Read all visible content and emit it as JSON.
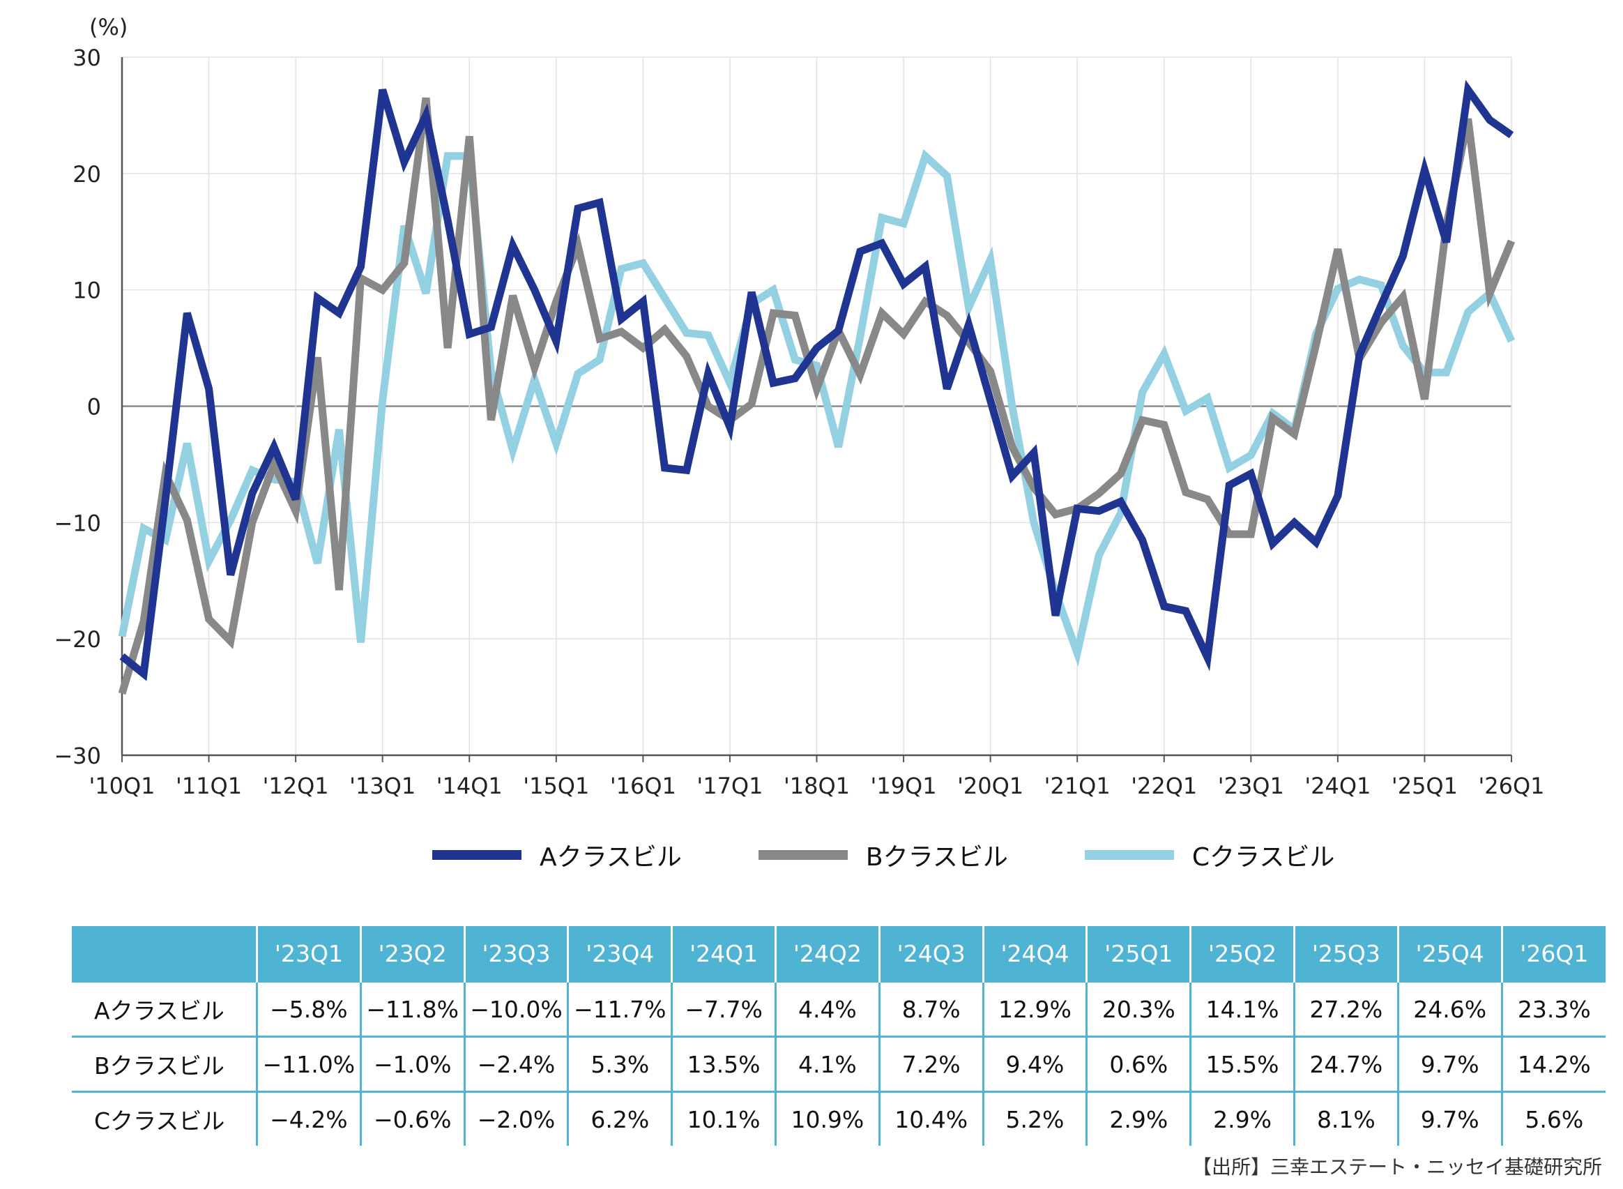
{
  "chart_data": {
    "type": "line",
    "y_unit": "(%)",
    "ylim": [
      -30,
      30
    ],
    "yticks": [
      30,
      20,
      10,
      0,
      -10,
      -20,
      -30
    ],
    "ytick_labels": [
      "30",
      "20",
      "10",
      "0",
      "−10",
      "−20",
      "−30"
    ],
    "xtick_labels": [
      "'10Q1",
      "'11Q1",
      "'12Q1",
      "'13Q1",
      "'14Q1",
      "'15Q1",
      "'16Q1",
      "'17Q1",
      "'18Q1",
      "'19Q1",
      "'20Q1",
      "'21Q1",
      "'22Q1",
      "'23Q1",
      "'24Q1",
      "'25Q1",
      "'26Q1"
    ],
    "x": [
      "'10Q1",
      "'10Q2",
      "'10Q3",
      "'10Q4",
      "'11Q1",
      "'11Q2",
      "'11Q3",
      "'11Q4",
      "'12Q1",
      "'12Q2",
      "'12Q3",
      "'12Q4",
      "'13Q1",
      "'13Q2",
      "'13Q3",
      "'13Q4",
      "'14Q1",
      "'14Q2",
      "'14Q3",
      "'14Q4",
      "'15Q1",
      "'15Q2",
      "'15Q3",
      "'15Q4",
      "'16Q1",
      "'16Q2",
      "'16Q3",
      "'16Q4",
      "'17Q1",
      "'17Q2",
      "'17Q3",
      "'17Q4",
      "'18Q1",
      "'18Q2",
      "'18Q3",
      "'18Q4",
      "'19Q1",
      "'19Q2",
      "'19Q3",
      "'19Q4",
      "'20Q1",
      "'20Q2",
      "'20Q3",
      "'20Q4",
      "'21Q1",
      "'21Q2",
      "'21Q3",
      "'21Q4",
      "'22Q1",
      "'22Q2",
      "'22Q3",
      "'22Q4",
      "'23Q1",
      "'23Q2",
      "'23Q3",
      "'23Q4",
      "'24Q1",
      "'24Q2",
      "'24Q3",
      "'24Q4",
      "'25Q1",
      "'25Q2",
      "'25Q3",
      "'25Q4",
      "'26Q1"
    ],
    "grid": true,
    "legend_position": "bottom",
    "series": [
      {
        "name": "Aクラスビル",
        "color": "#1f3591",
        "values": [
          -21.5,
          -23,
          -8,
          8,
          1.5,
          -14.5,
          -7.5,
          -3.5,
          -8,
          9.3,
          8,
          12,
          27.2,
          21,
          25,
          16,
          6.2,
          6.8,
          13.8,
          10,
          5.6,
          17,
          17.5,
          7.5,
          9,
          -5.3,
          -5.5,
          2.8,
          -1.8,
          9.8,
          2,
          2.4,
          5,
          6.5,
          13.3,
          14,
          10.5,
          12,
          1.5,
          7,
          0.5,
          -6,
          -4,
          -18,
          -8.8,
          -9,
          -8.2,
          -11.5,
          -17.2,
          -17.6,
          -21.6,
          -6.8,
          -5.8,
          -11.8,
          -10,
          -11.7,
          -7.7,
          4.4,
          8.7,
          12.9,
          20.3,
          14.1,
          27.2,
          24.6,
          23.3
        ]
      },
      {
        "name": "Bクラスビル",
        "color": "#888888",
        "values": [
          -24.7,
          -18.5,
          -5.8,
          -9.8,
          -18.3,
          -20.2,
          -10,
          -5,
          -9,
          4.2,
          -15.8,
          11,
          10,
          12.3,
          26.5,
          5,
          23.2,
          -1.2,
          9.5,
          3.3,
          9,
          13.8,
          5.8,
          6.4,
          5,
          6.6,
          4.3,
          0,
          -1.2,
          0.2,
          8,
          7.8,
          1.5,
          6.5,
          2.7,
          8,
          6.2,
          9,
          7.8,
          5.5,
          3,
          -3.5,
          -7,
          -9.3,
          -8.8,
          -7.5,
          -5.8,
          -1.2,
          -1.6,
          -7.4,
          -8,
          -11,
          -11,
          -1,
          -2.4,
          5.3,
          13.5,
          4.1,
          7.2,
          9.4,
          0.6,
          15.5,
          24.7,
          9.7,
          14.2
        ]
      },
      {
        "name": "Cクラスビル",
        "color": "#93d0e2",
        "values": [
          -19.8,
          -10.5,
          -11.5,
          -3.2,
          -13.3,
          -9.8,
          -5.5,
          -6.3,
          -6.5,
          -13.5,
          -2,
          -20.3,
          0.5,
          15.5,
          9.7,
          21.5,
          21.5,
          3,
          -3.8,
          2.3,
          -3.2,
          2.8,
          4,
          11.8,
          12.3,
          9.3,
          6.3,
          6.1,
          2,
          8.8,
          10,
          4,
          3.5,
          -3.5,
          6,
          16.2,
          15.7,
          21.5,
          19.8,
          8.5,
          12.6,
          0,
          -10,
          -16,
          -21.2,
          -12.8,
          -9.2,
          1.2,
          4.5,
          -0.4,
          0.7,
          -5.3,
          -4.2,
          -0.6,
          -2,
          6.2,
          10.1,
          10.9,
          10.4,
          5.2,
          2.9,
          2.9,
          8.1,
          9.7,
          5.6
        ]
      }
    ]
  },
  "table": {
    "headers": [
      "'23Q1",
      "'23Q2",
      "'23Q3",
      "'23Q4",
      "'24Q1",
      "'24Q2",
      "'24Q3",
      "'24Q4",
      "'25Q1",
      "'25Q2",
      "'25Q3",
      "'25Q4",
      "'26Q1"
    ],
    "rows": [
      {
        "label": "Aクラスビル",
        "values": [
          "−5.8%",
          "−11.8%",
          "−10.0%",
          "−11.7%",
          "−7.7%",
          "4.4%",
          "8.7%",
          "12.9%",
          "20.3%",
          "14.1%",
          "27.2%",
          "24.6%",
          "23.3%"
        ]
      },
      {
        "label": "Bクラスビル",
        "values": [
          "−11.0%",
          "−1.0%",
          "−2.4%",
          "5.3%",
          "13.5%",
          "4.1%",
          "7.2%",
          "9.4%",
          "0.6%",
          "15.5%",
          "24.7%",
          "9.7%",
          "14.2%"
        ]
      },
      {
        "label": "Cクラスビル",
        "values": [
          "−4.2%",
          "−0.6%",
          "−2.0%",
          "6.2%",
          "10.1%",
          "10.9%",
          "10.4%",
          "5.2%",
          "2.9%",
          "2.9%",
          "8.1%",
          "9.7%",
          "5.6%"
        ]
      }
    ],
    "header_color": "#4fb3d4"
  },
  "source": "【出所】三幸エステート・ニッセイ基礎研究所"
}
